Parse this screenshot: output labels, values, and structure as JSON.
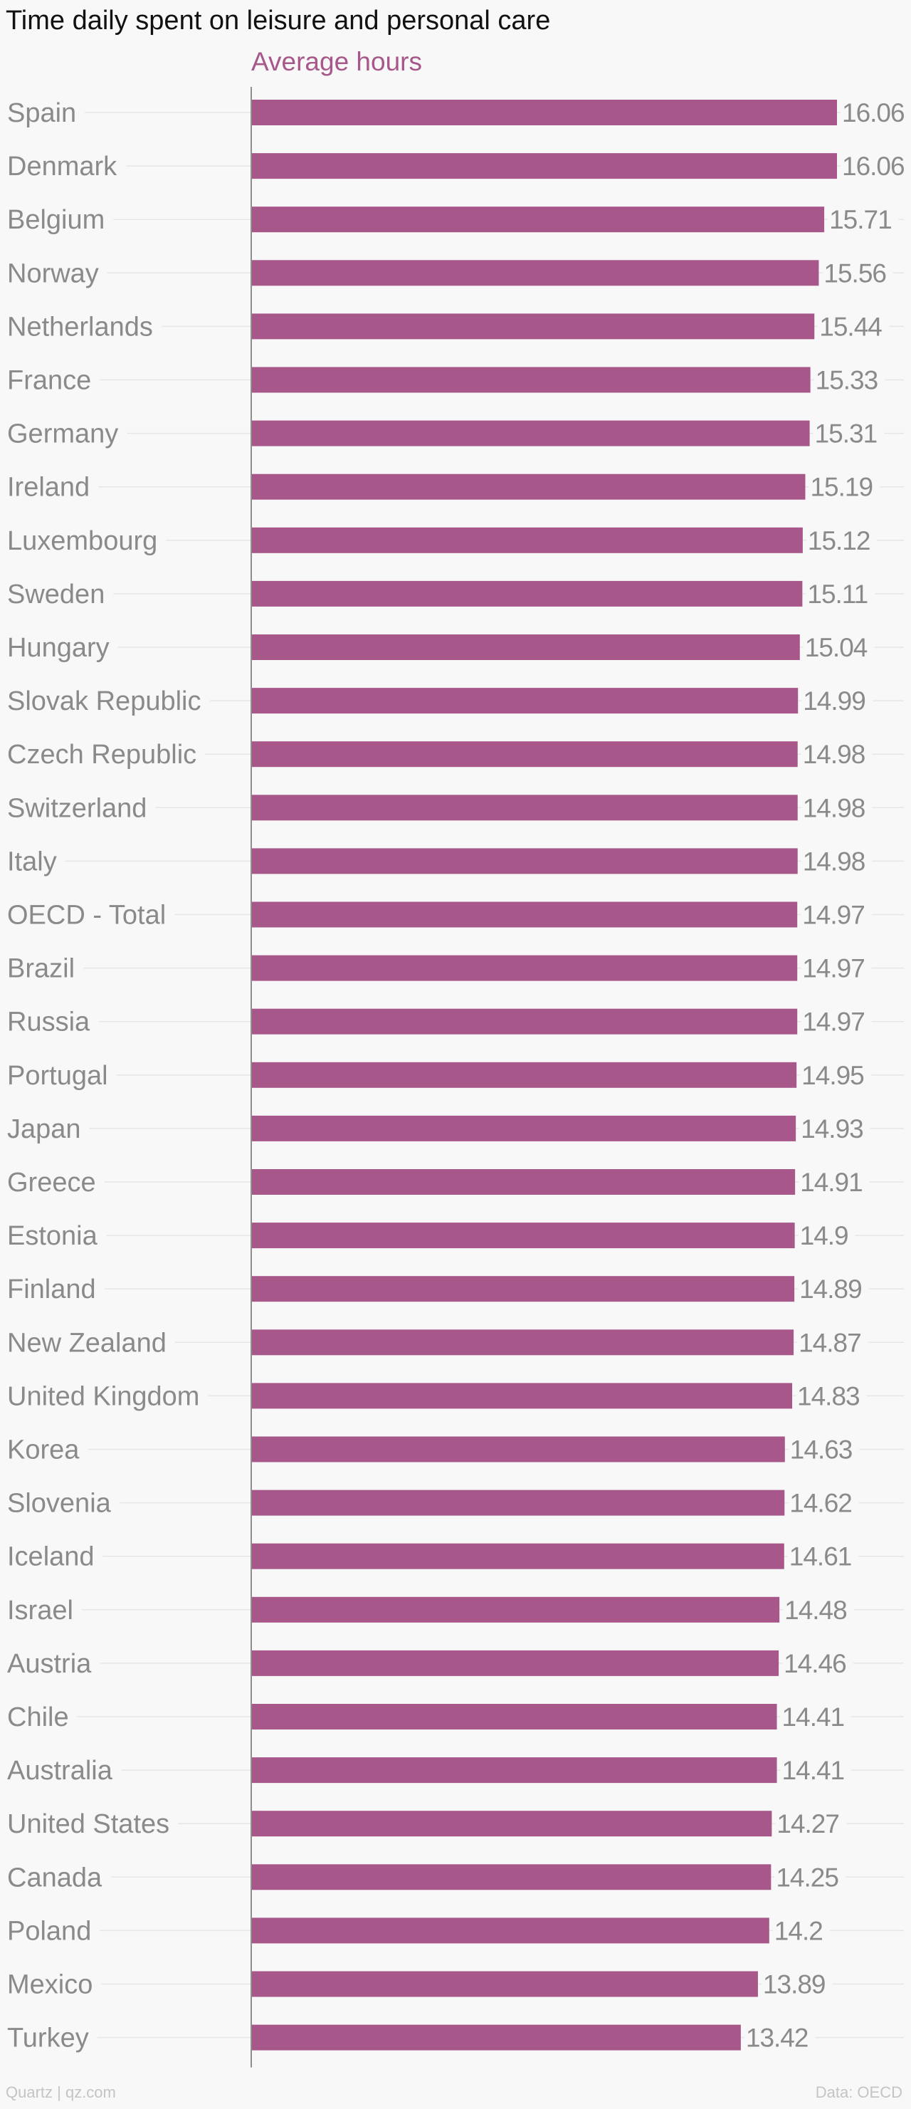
{
  "chart_data": {
    "type": "bar",
    "orientation": "horizontal",
    "title": "Time daily spent on leisure and personal care",
    "series": [
      {
        "name": "Average hours",
        "color": "#a8578a",
        "values": [
          16.06,
          16.06,
          15.71,
          15.56,
          15.44,
          15.33,
          15.31,
          15.19,
          15.12,
          15.11,
          15.04,
          14.99,
          14.98,
          14.98,
          14.98,
          14.97,
          14.97,
          14.97,
          14.95,
          14.93,
          14.91,
          14.9,
          14.89,
          14.87,
          14.83,
          14.63,
          14.62,
          14.61,
          14.48,
          14.46,
          14.41,
          14.41,
          14.27,
          14.25,
          14.2,
          13.89,
          13.42
        ]
      }
    ],
    "categories": [
      "Spain",
      "Denmark",
      "Belgium",
      "Norway",
      "Netherlands",
      "France",
      "Germany",
      "Ireland",
      "Luxembourg",
      "Sweden",
      "Hungary",
      "Slovak Republic",
      "Czech Republic",
      "Switzerland",
      "Italy",
      "OECD - Total",
      "Brazil",
      "Russia",
      "Portugal",
      "Japan",
      "Greece",
      "Estonia",
      "Finland",
      "New Zealand",
      "United Kingdom",
      "Korea",
      "Slovenia",
      "Iceland",
      "Israel",
      "Austria",
      "Chile",
      "Australia",
      "United States",
      "Canada",
      "Poland",
      "Mexico",
      "Turkey"
    ],
    "xlim": [
      0,
      16.06
    ],
    "grid": true,
    "data_labels": true
  },
  "colors": {
    "bar": "#a8578a",
    "category_label": "#8a8a8a",
    "value_label": "#8a8a8a",
    "gridline": "#e6e6e6",
    "axis": "#8e8e8e"
  },
  "footer": {
    "source_left": "Quartz | qz.com",
    "source_right": "Data: OECD"
  }
}
